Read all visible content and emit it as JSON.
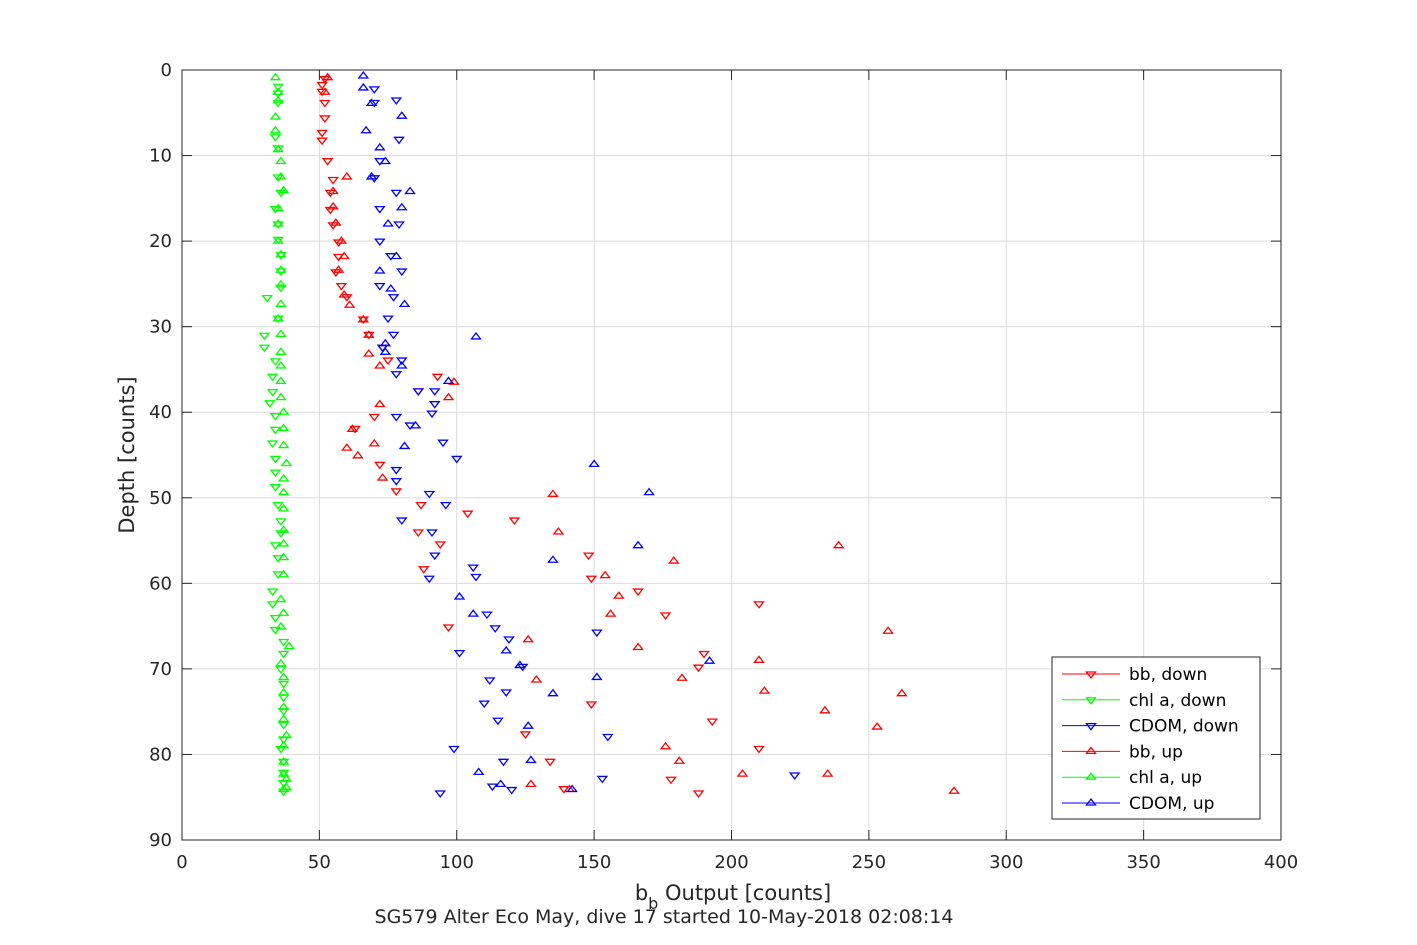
{
  "chart_data": {
    "type": "scatter",
    "title": "SG579 Alter Eco May, dive 17 started 10-May-2018 02:08:14",
    "xlabel_main": "b",
    "xlabel_sub": "b",
    "xlabel_rest": " Output [counts]",
    "ylabel": "Depth [counts]",
    "xlim": [
      0,
      400
    ],
    "ylim": [
      0,
      90
    ],
    "y_reversed": true,
    "grid": true,
    "legend_position": "bottom-right",
    "xticks": [
      0,
      50,
      100,
      150,
      200,
      250,
      300,
      350,
      400
    ],
    "yticks": [
      0,
      10,
      20,
      30,
      40,
      50,
      60,
      70,
      80,
      90
    ],
    "series": [
      {
        "name": "bb, down",
        "color": "#ff0000",
        "marker": "triangle-down",
        "points": [
          [
            52,
            1
          ],
          [
            51,
            1.7
          ],
          [
            51,
            2.5
          ],
          [
            52,
            3.8
          ],
          [
            52,
            5.6
          ],
          [
            51,
            7.3
          ],
          [
            51,
            8.2
          ],
          [
            53,
            10.6
          ],
          [
            55,
            12.8
          ],
          [
            54,
            14.3
          ],
          [
            54,
            16.3
          ],
          [
            55,
            18.1
          ],
          [
            57,
            20.1
          ],
          [
            57,
            21.8
          ],
          [
            56,
            23.6
          ],
          [
            58,
            25.2
          ],
          [
            60,
            26.5
          ],
          [
            66,
            29.1
          ],
          [
            68,
            30.9
          ],
          [
            73,
            32.4
          ],
          [
            75,
            33.9
          ],
          [
            93,
            35.8
          ],
          [
            86,
            37.5
          ],
          [
            70,
            40.5
          ],
          [
            63,
            41.9
          ],
          [
            72,
            46.1
          ],
          [
            78,
            49.2
          ],
          [
            87,
            50.8
          ],
          [
            104,
            51.8
          ],
          [
            121,
            52.6
          ],
          [
            94,
            55.4
          ],
          [
            86,
            54
          ],
          [
            148,
            56.7
          ],
          [
            88,
            58.3
          ],
          [
            149,
            59.4
          ],
          [
            166,
            60.9
          ],
          [
            97,
            65.1
          ],
          [
            176,
            63.7
          ],
          [
            190,
            68.2
          ],
          [
            188,
            69.8
          ],
          [
            210,
            62.4
          ],
          [
            149,
            74.1
          ],
          [
            193,
            76.1
          ],
          [
            210,
            79.3
          ],
          [
            125,
            77.6
          ],
          [
            134,
            80.8
          ],
          [
            178,
            82.9
          ],
          [
            139,
            84
          ],
          [
            188,
            84.5
          ]
        ]
      },
      {
        "name": "chl a, down",
        "color": "#00ff00",
        "marker": "triangle-down",
        "points": [
          [
            35,
            1.9
          ],
          [
            35,
            2.7
          ],
          [
            35,
            3.8
          ],
          [
            34,
            7.8
          ],
          [
            35,
            9.1
          ],
          [
            35,
            12.5
          ],
          [
            36,
            14.3
          ],
          [
            34,
            16.2
          ],
          [
            35,
            18
          ],
          [
            35,
            19.8
          ],
          [
            36,
            21.6
          ],
          [
            36,
            23.5
          ],
          [
            36,
            25.4
          ],
          [
            31,
            26.6
          ],
          [
            35,
            29
          ],
          [
            30,
            31
          ],
          [
            30,
            32.4
          ],
          [
            34,
            34
          ],
          [
            33,
            35.8
          ],
          [
            33,
            37.6
          ],
          [
            32,
            38.9
          ],
          [
            34,
            40.4
          ],
          [
            34,
            42
          ],
          [
            33,
            43.6
          ],
          [
            34,
            45.4
          ],
          [
            34,
            47
          ],
          [
            34,
            48.7
          ],
          [
            35,
            50.8
          ],
          [
            36,
            52.7
          ],
          [
            36,
            54.1
          ],
          [
            34,
            55.5
          ],
          [
            35,
            57
          ],
          [
            35,
            58.9
          ],
          [
            33,
            60.9
          ],
          [
            33,
            62.4
          ],
          [
            34,
            64
          ],
          [
            34,
            65.4
          ],
          [
            37,
            66.8
          ],
          [
            37,
            68.2
          ],
          [
            36,
            70
          ],
          [
            37,
            71.7
          ],
          [
            37,
            73.3
          ],
          [
            37,
            74.9
          ],
          [
            37,
            76.5
          ],
          [
            37,
            78.2
          ],
          [
            36,
            79.3
          ],
          [
            37,
            80.8
          ],
          [
            37,
            82.1
          ],
          [
            37,
            83.3
          ],
          [
            37,
            84.3
          ]
        ]
      },
      {
        "name": "CDOM, down",
        "color": "#0000ff",
        "marker": "triangle-down",
        "points": [
          [
            70,
            2.2
          ],
          [
            78,
            3.5
          ],
          [
            70,
            3.8
          ],
          [
            79,
            8.1
          ],
          [
            72,
            10.6
          ],
          [
            70,
            12.6
          ],
          [
            78,
            14.3
          ],
          [
            72,
            16.2
          ],
          [
            79,
            18
          ],
          [
            72,
            20
          ],
          [
            76,
            21.7
          ],
          [
            80,
            23.5
          ],
          [
            72,
            25.2
          ],
          [
            77,
            26.5
          ],
          [
            75,
            29
          ],
          [
            77,
            30.9
          ],
          [
            73,
            32.4
          ],
          [
            80,
            33.9
          ],
          [
            78,
            35.5
          ],
          [
            86,
            37.5
          ],
          [
            92,
            37.5
          ],
          [
            92,
            39
          ],
          [
            91,
            40.1
          ],
          [
            78,
            40.5
          ],
          [
            83,
            41.5
          ],
          [
            95,
            43.5
          ],
          [
            100,
            45.4
          ],
          [
            78,
            46.7
          ],
          [
            78,
            48
          ],
          [
            90,
            49.5
          ],
          [
            96,
            50.8
          ],
          [
            80,
            52.6
          ],
          [
            91,
            54
          ],
          [
            92,
            56.7
          ],
          [
            106,
            58.1
          ],
          [
            107,
            59.2
          ],
          [
            90,
            59.4
          ],
          [
            111,
            63.6
          ],
          [
            114,
            65.2
          ],
          [
            119,
            66.5
          ],
          [
            112,
            71.3
          ],
          [
            118,
            72.7
          ],
          [
            110,
            74
          ],
          [
            115,
            76
          ],
          [
            101,
            68.1
          ],
          [
            124,
            69.7
          ],
          [
            99,
            79.3
          ],
          [
            113,
            83.7
          ],
          [
            117,
            80.8
          ],
          [
            120,
            84.1
          ],
          [
            94,
            84.5
          ],
          [
            153,
            82.8
          ],
          [
            155,
            77.9
          ],
          [
            151,
            65.7
          ],
          [
            223,
            82.4
          ]
        ]
      },
      {
        "name": "bb, up",
        "color": "#ff0000",
        "marker": "triangle-up",
        "points": [
          [
            53,
            0.9
          ],
          [
            52,
            2.6
          ],
          [
            60,
            12.5
          ],
          [
            55,
            14.2
          ],
          [
            55,
            16
          ],
          [
            56,
            17.9
          ],
          [
            58,
            20
          ],
          [
            59,
            21.8
          ],
          [
            57,
            23.4
          ],
          [
            59,
            26.3
          ],
          [
            61,
            27.5
          ],
          [
            66,
            29.2
          ],
          [
            68,
            31
          ],
          [
            68,
            33.2
          ],
          [
            72,
            34.6
          ],
          [
            99,
            36.5
          ],
          [
            97,
            38.3
          ],
          [
            72,
            39.1
          ],
          [
            62,
            42
          ],
          [
            60,
            44.2
          ],
          [
            70,
            43.7
          ],
          [
            64,
            45.1
          ],
          [
            73,
            47.7
          ],
          [
            135,
            49.6
          ],
          [
            137,
            54
          ],
          [
            154,
            59.1
          ],
          [
            159,
            61.5
          ],
          [
            156,
            63.6
          ],
          [
            166,
            67.5
          ],
          [
            179,
            57.4
          ],
          [
            182,
            71.1
          ],
          [
            210,
            69
          ],
          [
            212,
            72.6
          ],
          [
            126,
            66.6
          ],
          [
            129,
            71.3
          ],
          [
            239,
            55.6
          ],
          [
            257,
            65.6
          ],
          [
            262,
            72.9
          ],
          [
            234,
            74.9
          ],
          [
            253,
            76.8
          ],
          [
            181,
            80.8
          ],
          [
            176,
            79.1
          ],
          [
            235,
            82.3
          ],
          [
            204,
            82.3
          ],
          [
            127,
            83.5
          ],
          [
            141,
            84.1
          ],
          [
            281,
            84.3
          ]
        ]
      },
      {
        "name": "chl a, up",
        "color": "#00ff00",
        "marker": "triangle-up",
        "points": [
          [
            34,
            0.9
          ],
          [
            35,
            2.6
          ],
          [
            35,
            3.6
          ],
          [
            34,
            5.5
          ],
          [
            34,
            7.1
          ],
          [
            35,
            9.3
          ],
          [
            36,
            10.7
          ],
          [
            36,
            12.5
          ],
          [
            37,
            14.1
          ],
          [
            35,
            16.2
          ],
          [
            35,
            18
          ],
          [
            35,
            20
          ],
          [
            36,
            21.6
          ],
          [
            36,
            23.4
          ],
          [
            36,
            25.1
          ],
          [
            36,
            27.4
          ],
          [
            35,
            29.1
          ],
          [
            36,
            30.9
          ],
          [
            36,
            33
          ],
          [
            36,
            34.6
          ],
          [
            36,
            36.4
          ],
          [
            36,
            38.3
          ],
          [
            37,
            40
          ],
          [
            37,
            41.9
          ],
          [
            37,
            43.9
          ],
          [
            38,
            46
          ],
          [
            37,
            47.8
          ],
          [
            37,
            49.4
          ],
          [
            37,
            51.3
          ],
          [
            37,
            53.8
          ],
          [
            37,
            55.4
          ],
          [
            37,
            57
          ],
          [
            37,
            59
          ],
          [
            36,
            61.9
          ],
          [
            37,
            63.5
          ],
          [
            36,
            65.1
          ],
          [
            39,
            67.4
          ],
          [
            36,
            69.4
          ],
          [
            37,
            71
          ],
          [
            37,
            72.8
          ],
          [
            37,
            74.5
          ],
          [
            37,
            75.9
          ],
          [
            38,
            77.8
          ],
          [
            37,
            79
          ],
          [
            37,
            80.9
          ],
          [
            37,
            82.3
          ],
          [
            38,
            82.9
          ],
          [
            38,
            83.9
          ],
          [
            37,
            84.1
          ]
        ]
      },
      {
        "name": "CDOM, up",
        "color": "#0000ff",
        "marker": "triangle-up",
        "points": [
          [
            66,
            0.7
          ],
          [
            66,
            2.1
          ],
          [
            69,
            3.9
          ],
          [
            80,
            5.4
          ],
          [
            67,
            7.1
          ],
          [
            72,
            9.1
          ],
          [
            74,
            10.7
          ],
          [
            69,
            12.5
          ],
          [
            83,
            14.2
          ],
          [
            80,
            16.1
          ],
          [
            75,
            18
          ],
          [
            78,
            21.8
          ],
          [
            72,
            23.5
          ],
          [
            76,
            25.6
          ],
          [
            81,
            27.4
          ],
          [
            107,
            31.2
          ],
          [
            74,
            32
          ],
          [
            74,
            33
          ],
          [
            80,
            34.6
          ],
          [
            97,
            36.4
          ],
          [
            85,
            41.6
          ],
          [
            81,
            44
          ],
          [
            150,
            46.1
          ],
          [
            170,
            49.4
          ],
          [
            166,
            55.6
          ],
          [
            135,
            57.3
          ],
          [
            101,
            61.6
          ],
          [
            106,
            63.6
          ],
          [
            118,
            67.9
          ],
          [
            123,
            69.6
          ],
          [
            126,
            76.7
          ],
          [
            135,
            72.9
          ],
          [
            151,
            71
          ],
          [
            192,
            69.1
          ],
          [
            108,
            82.1
          ],
          [
            116,
            83.5
          ],
          [
            127,
            80.7
          ],
          [
            142,
            84.1
          ]
        ]
      }
    ]
  }
}
